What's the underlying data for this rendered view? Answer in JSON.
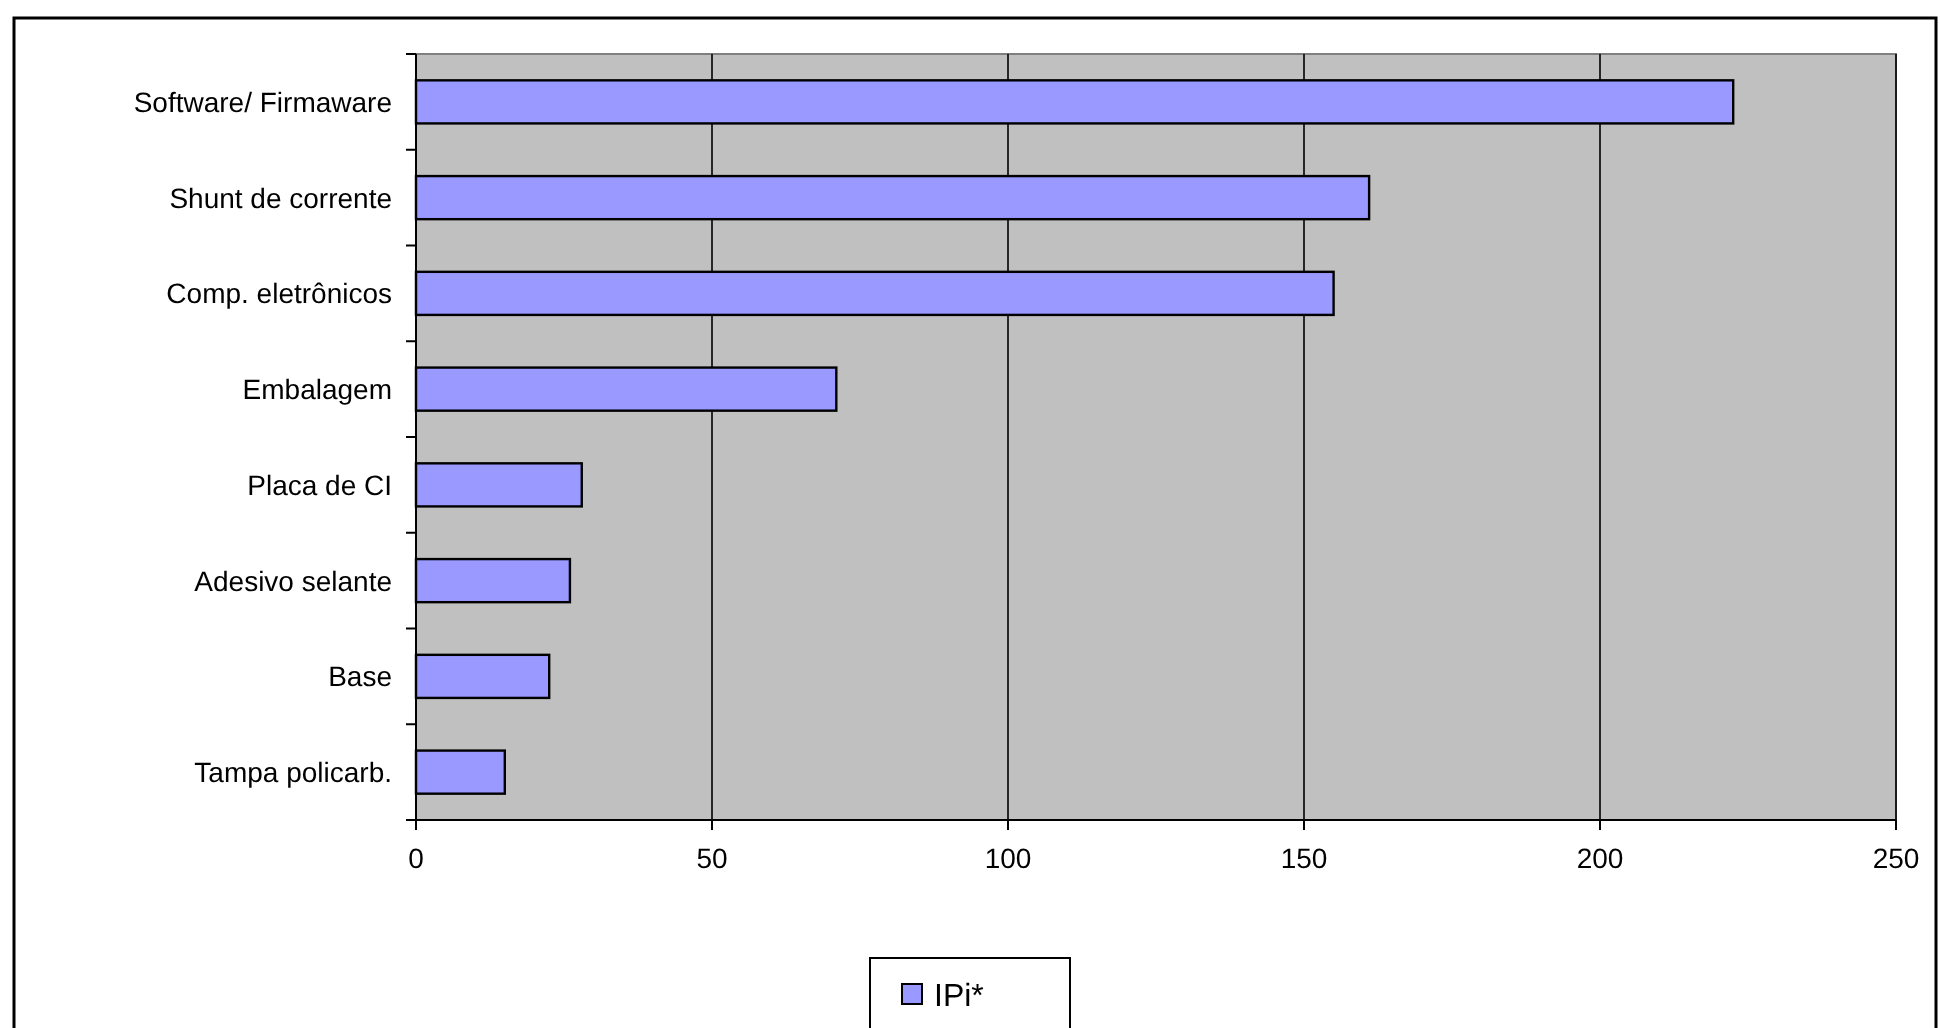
{
  "chart_data": {
    "type": "bar",
    "orientation": "horizontal",
    "categories": [
      "Software/ Firmaware",
      "Shunt de corrente",
      "Comp. eletrônicos",
      "Embalagem",
      "Placa de CI",
      "Adesivo selante",
      "Base",
      "Tampa policarb."
    ],
    "series": [
      {
        "name": "IPi*",
        "color": "#9999ff",
        "values": [
          222.5,
          161,
          155,
          71,
          28,
          26,
          22.5,
          15
        ]
      }
    ],
    "xlim": [
      0,
      250
    ],
    "xticks": [
      0,
      50,
      100,
      150,
      200,
      250
    ],
    "grid": "x",
    "legend": "bottom"
  }
}
